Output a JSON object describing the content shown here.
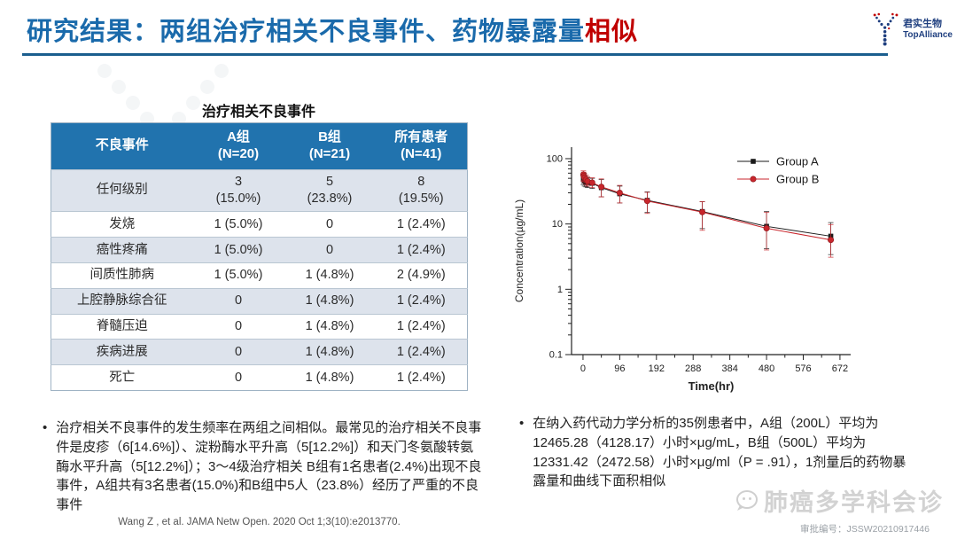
{
  "header": {
    "title_main": "研究结果：两组治疗相关不良事件、药物暴露量",
    "title_accent": "相似",
    "logo_cn": "君实生物",
    "logo_en": "TopAlliance"
  },
  "colors": {
    "title_blue": "#1a6aab",
    "accent_red": "#c00000",
    "table_header_bg": "#2173ae",
    "row_band_bg": "#dde3ec",
    "group_a": "#1a1a1a",
    "group_b": "#c8262c"
  },
  "table": {
    "title": "治疗相关不良事件",
    "columns": [
      "不良事件",
      "A组\n(N=20)",
      "B组\n(N=21)",
      "所有患者\n(N=41)"
    ],
    "rows": [
      [
        "任何级别",
        "3\n(15.0%)",
        "5\n(23.8%)",
        "8\n(19.5%)"
      ],
      [
        "发烧",
        "1 (5.0%)",
        "0",
        "1 (2.4%)"
      ],
      [
        "癌性疼痛",
        "1 (5.0%)",
        "0",
        "1 (2.4%)"
      ],
      [
        "间质性肺病",
        "1 (5.0%)",
        "1 (4.8%)",
        "2 (4.9%)"
      ],
      [
        "上腔静脉综合征",
        "0",
        "1 (4.8%)",
        "1 (2.4%)"
      ],
      [
        "脊髓压迫",
        "0",
        "1 (4.8%)",
        "1 (2.4%)"
      ],
      [
        "疾病进展",
        "0",
        "1 (4.8%)",
        "1 (2.4%)"
      ],
      [
        "死亡",
        "0",
        "1 (4.8%)",
        "1 (2.4%)"
      ]
    ]
  },
  "chart_data": {
    "type": "line",
    "title": "",
    "xlabel": "Time(hr)",
    "ylabel": "Concentration(µg/mL)",
    "x_ticks": [
      0,
      96,
      192,
      288,
      384,
      480,
      576,
      672
    ],
    "x_minor_step": 48,
    "y_scale": "log",
    "y_ticks": [
      0.1,
      1,
      10,
      100
    ],
    "xlim": [
      -30,
      700
    ],
    "ylim": [
      0.1,
      150
    ],
    "grid": false,
    "legend_position": "top-right",
    "series": [
      {
        "name": "Group A",
        "marker": "square",
        "color": "#1a1a1a",
        "points": [
          [
            1,
            48,
            40,
            58
          ],
          [
            2,
            50,
            42,
            60
          ],
          [
            4,
            46,
            38,
            55
          ],
          [
            8,
            44,
            37,
            53
          ],
          [
            12,
            43,
            36,
            51
          ],
          [
            24,
            42,
            35,
            50
          ],
          [
            48,
            36,
            26,
            48
          ],
          [
            96,
            29,
            21,
            38
          ],
          [
            168,
            23,
            15,
            31
          ],
          [
            312,
            15.5,
            8.5,
            22
          ],
          [
            480,
            9.2,
            4.2,
            15.5
          ],
          [
            648,
            6.5,
            3.4,
            10.5
          ]
        ]
      },
      {
        "name": "Group B",
        "marker": "circle",
        "color": "#c8262c",
        "points": [
          [
            1,
            57,
            46,
            65
          ],
          [
            2,
            54,
            45,
            62
          ],
          [
            4,
            51,
            43,
            59
          ],
          [
            8,
            48,
            40,
            56
          ],
          [
            12,
            45,
            38,
            53
          ],
          [
            24,
            43,
            36,
            51
          ],
          [
            48,
            37,
            26,
            49
          ],
          [
            96,
            30,
            21,
            39
          ],
          [
            168,
            22.5,
            14.5,
            30.5
          ],
          [
            312,
            15.2,
            8.0,
            22
          ],
          [
            480,
            8.6,
            4.0,
            15
          ],
          [
            648,
            5.7,
            3.1,
            9.8
          ]
        ]
      }
    ]
  },
  "notes": {
    "bullet_marker": "•",
    "left_bullet": "治疗相关不良事件的发生频率在两组之间相似。最常见的治疗相关不良事件是皮疹（6[14.6%]）、淀粉酶水平升高（5[12.2%]）和天门冬氨酸转氨酶水平升高（5[12.2%]）；3～4级治疗相关 B组有1名患者(2.4%)出现不良事件，A组共有3名患者(15.0%)和B组中5人（23.8%）经历了严重的不良事件",
    "right_bullet": "在纳入药代动力学分析的35例患者中，A组（200L）平均为12465.28（4128.17）小时×μg/mL，B组（500L）平均为12331.42（2472.58）小时×μg/ml（P = .91），1剂量后的药物暴露量和曲线下面积相似",
    "citation": "Wang Z , et al. JAMA  Netw Open. 2020 Oct 1;3(10):e2013770."
  },
  "footer": {
    "watermark": "肺癌多学科会诊",
    "approval_label": "审批编号：",
    "approval_no": "JSSW20210917446"
  }
}
